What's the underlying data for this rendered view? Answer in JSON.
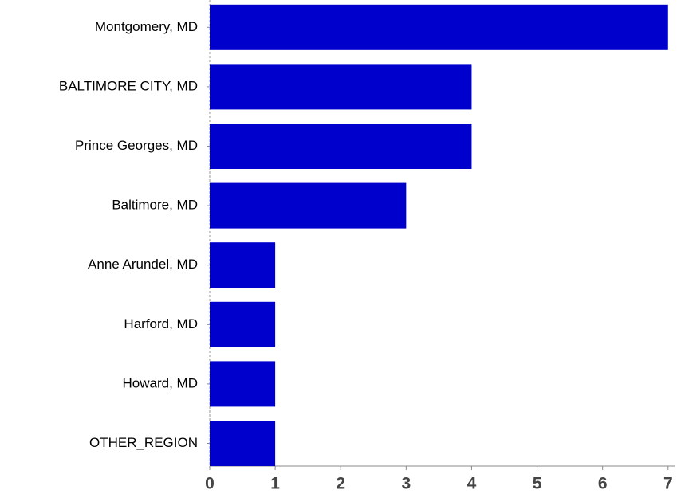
{
  "chart_data": {
    "type": "bar",
    "orientation": "horizontal",
    "categories": [
      "Montgomery, MD",
      "BALTIMORE CITY, MD",
      "Prince Georges, MD",
      "Baltimore, MD",
      "Anne Arundel, MD",
      "Harford, MD",
      "Howard, MD",
      "OTHER_REGION"
    ],
    "values": [
      7,
      4,
      4,
      3,
      1,
      1,
      1,
      1
    ],
    "color": "#0000cc",
    "xlim": [
      0,
      7.1
    ],
    "xticks": [
      0,
      1,
      2,
      3,
      4,
      5,
      6,
      7
    ],
    "grid": false
  }
}
